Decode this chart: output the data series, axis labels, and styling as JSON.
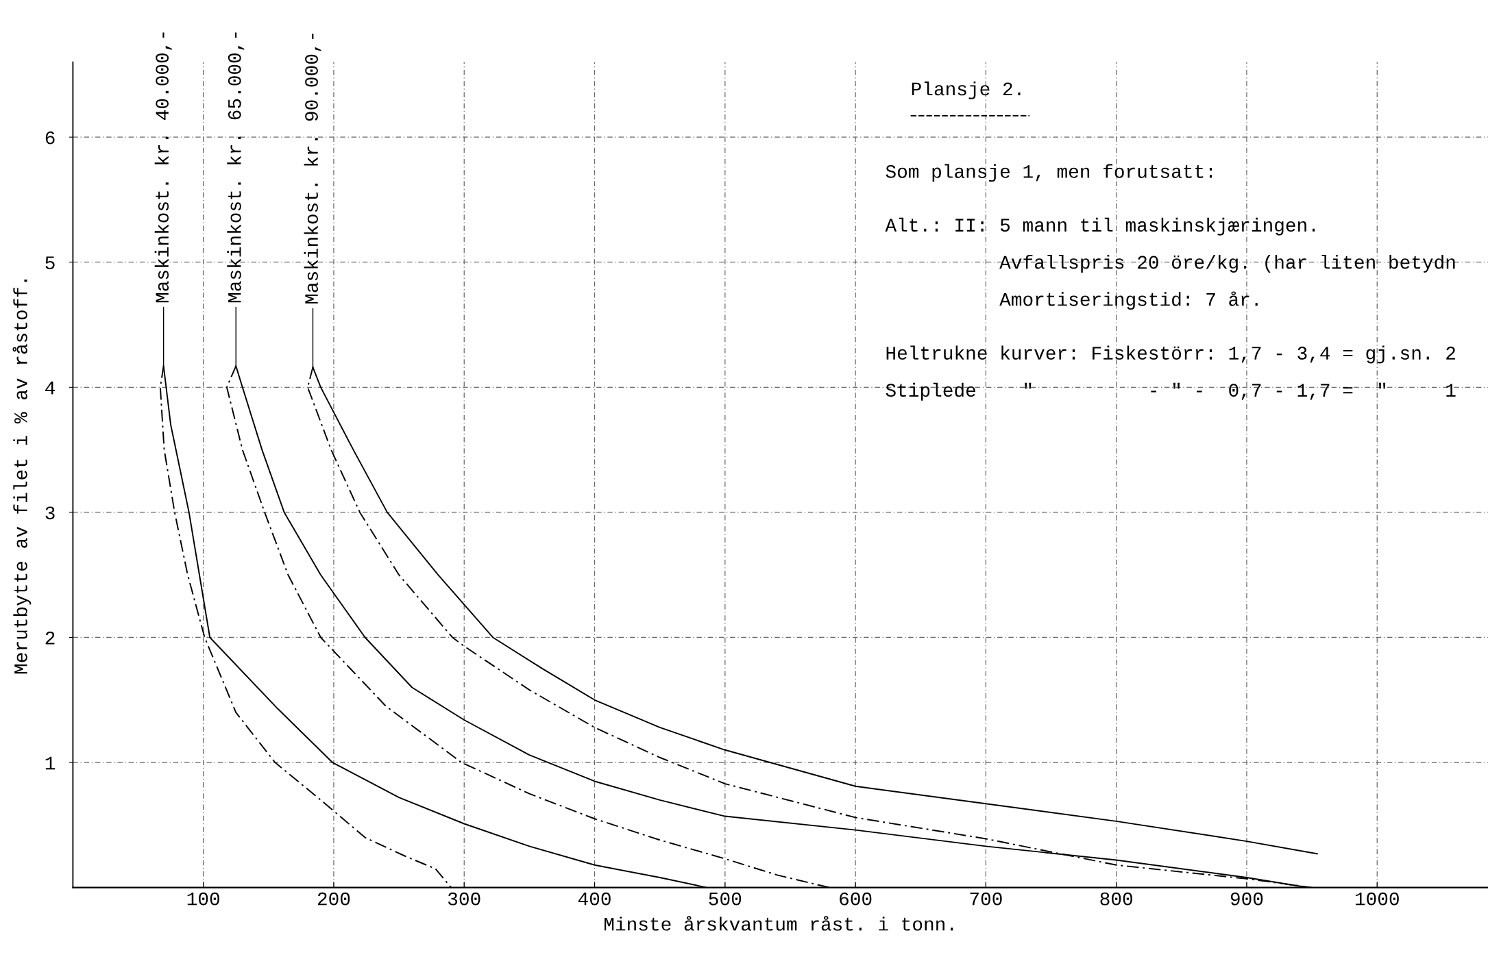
{
  "chart_data": {
    "type": "line",
    "title": "Plansje 2.",
    "xlabel": "Minste årskvantum råst. i tonn.",
    "ylabel": "Merutbytte av filet i % av råstoff.",
    "xlim": [
      0,
      1085
    ],
    "ylim": [
      0,
      6.6
    ],
    "xticks": [
      100,
      200,
      300,
      400,
      500,
      600,
      700,
      800,
      900,
      1000
    ],
    "yticks": [
      1,
      2,
      3,
      4,
      5,
      6
    ],
    "grid": true,
    "legend": false,
    "marker": "none",
    "series": [
      {
        "color": "#000000",
        "line_style": "solid",
        "x": [
          69.5,
          75,
          89,
          105,
          157,
          199,
          250,
          300,
          350,
          400,
          450,
          486
        ],
        "values": [
          4.17,
          3.7,
          3,
          2,
          1.43,
          1,
          0.72,
          0.51,
          0.33,
          0.18,
          0.08,
          0
        ]
      },
      {
        "color": "#000000",
        "line_style": "dashed",
        "x": [
          69.5,
          67,
          70,
          78,
          88,
          101,
          125,
          155,
          190,
          224,
          255,
          278,
          290
        ],
        "values": [
          4.17,
          4.0,
          3.5,
          3,
          2.5,
          2,
          1.4,
          1,
          0.7,
          0.4,
          0.25,
          0.15,
          0
        ]
      },
      {
        "color": "#000000",
        "line_style": "solid",
        "x": [
          125,
          130,
          145,
          162,
          190,
          224,
          260,
          300,
          350,
          400,
          450,
          500,
          600,
          700,
          800,
          900,
          947
        ],
        "values": [
          4.17,
          4.0,
          3.5,
          3,
          2.5,
          2,
          1.6,
          1.34,
          1.06,
          0.85,
          0.7,
          0.57,
          0.46,
          0.33,
          0.22,
          0.08,
          0
        ]
      },
      {
        "color": "#000000",
        "line_style": "dashed",
        "x": [
          125,
          118,
          130,
          147,
          165,
          190,
          240,
          298,
          350,
          400,
          450,
          500,
          540,
          580
        ],
        "values": [
          4.17,
          4.0,
          3.5,
          3,
          2.5,
          2,
          1.45,
          1,
          0.75,
          0.55,
          0.38,
          0.23,
          0.1,
          0
        ]
      },
      {
        "color": "#000000",
        "line_style": "solid",
        "x": [
          184,
          190,
          215,
          241,
          280,
          322,
          360,
          400,
          450,
          500,
          600,
          700,
          800,
          900,
          954
        ],
        "values": [
          4.16,
          4.0,
          3.5,
          3,
          2.5,
          2,
          1.75,
          1.5,
          1.28,
          1.1,
          0.81,
          0.67,
          0.53,
          0.37,
          0.27
        ]
      },
      {
        "color": "#000000",
        "line_style": "dashed",
        "x": [
          184,
          180,
          198,
          220,
          250,
          291,
          300,
          350,
          400,
          450,
          500,
          600,
          700,
          800,
          900,
          950
        ],
        "values": [
          4.16,
          4.0,
          3.5,
          3,
          2.5,
          2,
          1.93,
          1.58,
          1.28,
          1.04,
          0.83,
          0.56,
          0.39,
          0.18,
          0.07,
          0
        ]
      }
    ],
    "annotations": [
      {
        "text": "Maskinkost. kr. 40.000,-",
        "x": 69.5,
        "y": 4.17
      },
      {
        "text": "Maskinkost. kr. 65.000,-",
        "x": 125,
        "y": 4.17
      },
      {
        "text": "Maskinkost. kr. 90.000,-",
        "x": 184,
        "y": 4.16
      },
      "Som plansje 1, men forutsatt:",
      "Alt.: II: 5 mann til maskinskjæringen.",
      "          Avfallspris 20 öre/kg. (har liten betydn",
      "          Amortiseringstid: 7 år.",
      "Heltrukne kurver: Fiskestörr: 1,7 - 3,4 = gj.sn. 2",
      "Stiplede    \"          - \" -  0,7 - 1,7 =  \"     1"
    ]
  }
}
